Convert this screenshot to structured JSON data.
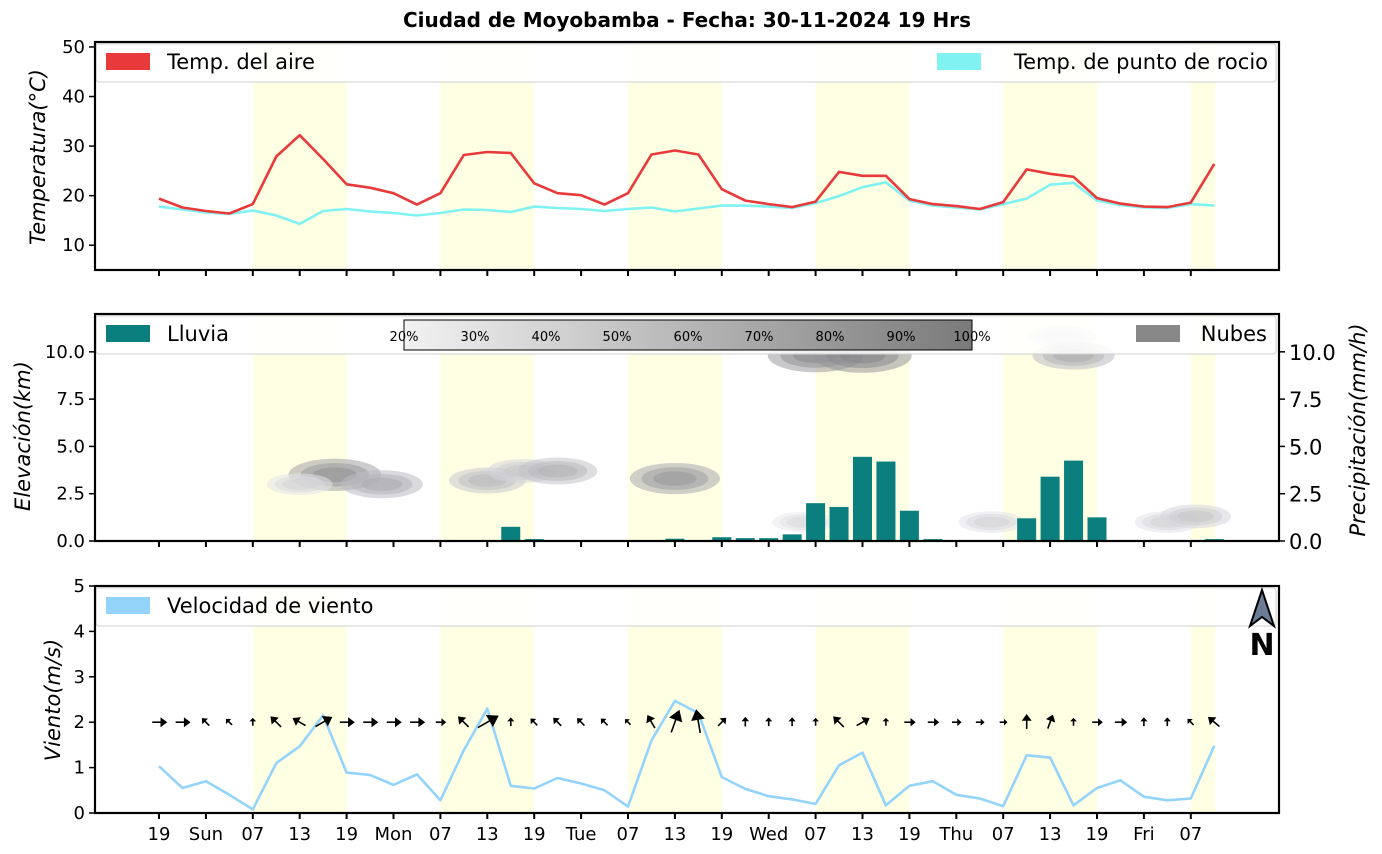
{
  "title": "Ciudad de Moyobamba   -   Fecha: 30-11-2024 19 Hrs",
  "x_tick_labels": [
    "19",
    "Sun",
    "07",
    "13",
    "19",
    "Mon",
    "07",
    "13",
    "19",
    "Tue",
    "07",
    "13",
    "19",
    "Wed",
    "07",
    "13",
    "19",
    "Thu",
    "07",
    "13",
    "19",
    "Fri",
    "07"
  ],
  "chart_data": [
    {
      "type": "line",
      "id": "temperature",
      "ylabel": "Temperatura(°C)",
      "ylim": [
        5,
        51
      ],
      "yticks": [
        10,
        20,
        30,
        40,
        50
      ],
      "x_unit": "hours since first sample (3-hourly)",
      "series": [
        {
          "name": "Temp. del aire",
          "color": "#e83a3a",
          "values": [
            19.4,
            17.6,
            16.9,
            16.4,
            18.3,
            27.9,
            32.2,
            27.4,
            22.3,
            21.6,
            20.5,
            18.2,
            20.5,
            28.2,
            28.8,
            28.6,
            22.5,
            20.5,
            20.1,
            18.2,
            20.5,
            28.3,
            29.1,
            28.3,
            21.3,
            19.0,
            18.3,
            17.7,
            18.8,
            24.8,
            24.0,
            24.0,
            19.3,
            18.3,
            17.9,
            17.3,
            18.7,
            25.3,
            24.4,
            23.8,
            19.5,
            18.4,
            17.8,
            17.7,
            18.6,
            26.4
          ]
        },
        {
          "name": "Temp. de punto de rocio",
          "color": "#80f2f2",
          "values": [
            17.8,
            17.2,
            16.6,
            16.3,
            17.0,
            16.0,
            14.3,
            16.9,
            17.3,
            16.8,
            16.5,
            16.0,
            16.5,
            17.2,
            17.1,
            16.7,
            17.8,
            17.5,
            17.3,
            16.9,
            17.3,
            17.6,
            16.8,
            17.4,
            18.0,
            18.0,
            17.8,
            17.5,
            18.5,
            19.9,
            21.7,
            22.7,
            19.0,
            18.0,
            17.6,
            17.2,
            18.3,
            19.4,
            22.2,
            22.6,
            19.0,
            18.1,
            17.6,
            17.5,
            18.3,
            18.0
          ]
        }
      ],
      "legend": "top"
    },
    {
      "type": "bar",
      "id": "rain-clouds",
      "ylabel_left": "Elevación(km)",
      "ylabel_right": "Precipitación(mm/h)",
      "ylim": [
        0,
        12
      ],
      "yticks": [
        0.0,
        2.5,
        5.0,
        7.5,
        10.0
      ],
      "yticks_right": [
        0.0,
        2.5,
        5.0,
        7.5,
        10.0
      ],
      "series": [
        {
          "name": "Lluvia",
          "color": "#0b7e7e",
          "values": [
            0,
            0,
            0,
            0,
            0,
            0,
            0,
            0,
            0,
            0,
            0,
            0,
            0,
            0,
            0,
            0.75,
            0.1,
            0,
            0,
            0,
            0,
            0.05,
            0.12,
            0,
            0.2,
            0.15,
            0.15,
            0.35,
            2.0,
            1.8,
            4.45,
            4.2,
            1.6,
            0.1,
            0,
            0,
            0,
            1.2,
            3.4,
            4.25,
            1.25,
            0.05,
            0,
            0,
            0,
            0.1
          ]
        }
      ],
      "clouds_legend": "Nubes",
      "cloud_scale": [
        "20%",
        "30%",
        "40%",
        "50%",
        "60%",
        "70%",
        "80%",
        "90%",
        "100%"
      ],
      "cloud_patches": [
        {
          "x": 7.5,
          "elev": 3.5,
          "cover": 0.75
        },
        {
          "x": 6.0,
          "elev": 3.0,
          "cover": 0.25
        },
        {
          "x": 9.5,
          "elev": 3.0,
          "cover": 0.55
        },
        {
          "x": 14.0,
          "elev": 3.2,
          "cover": 0.45
        },
        {
          "x": 15.5,
          "elev": 3.7,
          "cover": 0.35
        },
        {
          "x": 17.0,
          "elev": 3.7,
          "cover": 0.5
        },
        {
          "x": 22.0,
          "elev": 3.3,
          "cover": 0.7
        },
        {
          "x": 28.0,
          "elev": 9.8,
          "cover": 0.8
        },
        {
          "x": 30.0,
          "elev": 9.8,
          "cover": 0.85
        },
        {
          "x": 27.5,
          "elev": 1.0,
          "cover": 0.2
        },
        {
          "x": 35.5,
          "elev": 1.0,
          "cover": 0.25
        },
        {
          "x": 38.5,
          "elev": 10.8,
          "cover": 0.3
        },
        {
          "x": 39.0,
          "elev": 9.8,
          "cover": 0.55
        },
        {
          "x": 43.0,
          "elev": 1.0,
          "cover": 0.25
        },
        {
          "x": 44.2,
          "elev": 1.3,
          "cover": 0.35
        }
      ],
      "legend": "top"
    },
    {
      "type": "line",
      "id": "wind",
      "ylabel": "Viento(m/s)",
      "ylim": [
        0,
        5
      ],
      "yticks": [
        0,
        1,
        2,
        3,
        4,
        5
      ],
      "series": [
        {
          "name": "Velocidad de viento",
          "color": "#94d4fb",
          "values": [
            1.03,
            0.55,
            0.7,
            0.4,
            0.08,
            1.1,
            1.47,
            2.15,
            0.89,
            0.84,
            0.62,
            0.85,
            0.28,
            1.38,
            2.3,
            0.6,
            0.54,
            0.77,
            0.65,
            0.5,
            0.14,
            1.6,
            2.47,
            2.2,
            0.79,
            0.53,
            0.37,
            0.3,
            0.2,
            1.05,
            1.33,
            0.17,
            0.6,
            0.7,
            0.4,
            0.32,
            0.15,
            1.27,
            1.22,
            0.17,
            0.55,
            0.72,
            0.36,
            0.28,
            0.32,
            1.48
          ]
        }
      ],
      "wind_directions_deg": [
        90,
        90,
        315,
        315,
        0,
        315,
        300,
        60,
        90,
        90,
        90,
        90,
        90,
        315,
        60,
        0,
        315,
        315,
        315,
        315,
        315,
        330,
        20,
        350,
        45,
        0,
        0,
        0,
        0,
        315,
        60,
        0,
        90,
        90,
        90,
        90,
        90,
        0,
        20,
        0,
        90,
        90,
        0,
        0,
        315,
        310
      ],
      "wind_speeds_arrow": [
        1.0,
        1.0,
        0.5,
        0.3,
        0.2,
        1.0,
        1.0,
        1.5,
        1.0,
        1.0,
        1.0,
        1.0,
        0.5,
        1.0,
        2.0,
        0.3,
        0.4,
        0.6,
        0.5,
        0.4,
        0.2,
        1.0,
        2.0,
        2.0,
        0.6,
        0.4,
        0.3,
        0.3,
        0.2,
        1.0,
        1.0,
        0.2,
        0.6,
        0.6,
        0.4,
        0.3,
        0.2,
        1.0,
        1.0,
        0.2,
        0.5,
        0.7,
        0.3,
        0.3,
        0.3,
        1.0
      ],
      "north_label": "N",
      "legend": "top"
    }
  ],
  "legend_labels": {
    "air": "Temp. del aire",
    "dew": "Temp. de punto de rocio",
    "rain": "Lluvia",
    "clouds": "Nubes",
    "wind": "Velocidad de viento"
  },
  "colors": {
    "daylight": "#ffffe4",
    "axis": "#000000"
  }
}
